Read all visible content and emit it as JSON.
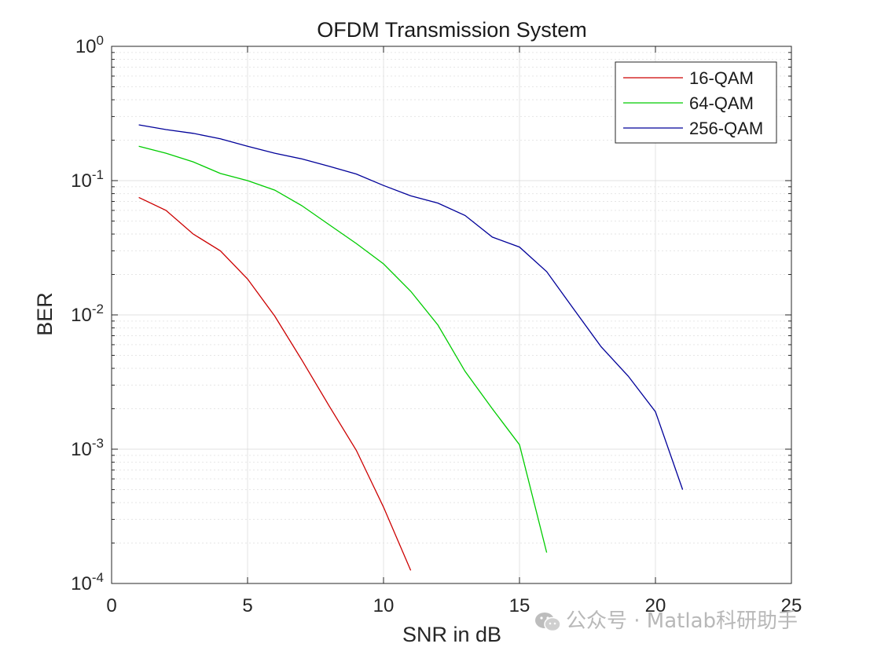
{
  "chart_data": {
    "type": "line",
    "title": "OFDM Transmission System",
    "xlabel": "SNR in dB",
    "ylabel": "BER",
    "xlim": [
      0,
      25
    ],
    "ylim": [
      0.0001,
      1
    ],
    "yscale": "log",
    "grid": true,
    "legend_position": "top-right",
    "x_ticks": [
      "0",
      "5",
      "10",
      "15",
      "20",
      "25"
    ],
    "y_tick_base": "10",
    "y_tick_exponents": [
      "0",
      "-1",
      "-2",
      "-3",
      "-4"
    ],
    "series": [
      {
        "name": "16-QAM",
        "color": "#cc0000",
        "x": [
          1,
          2,
          3,
          4,
          5,
          6,
          7,
          8,
          9,
          10,
          11
        ],
        "y": [
          0.075,
          0.06,
          0.04,
          0.03,
          0.0185,
          0.0098,
          0.0046,
          0.0021,
          0.00098,
          0.00037,
          0.000125
        ]
      },
      {
        "name": "64-QAM",
        "color": "#00cc00",
        "x": [
          1,
          2,
          3,
          4,
          5,
          6,
          7,
          8,
          9,
          10,
          11,
          12,
          13,
          14,
          15,
          16
        ],
        "y": [
          0.18,
          0.16,
          0.138,
          0.113,
          0.1,
          0.085,
          0.065,
          0.047,
          0.034,
          0.024,
          0.015,
          0.0084,
          0.0038,
          0.002,
          0.00108,
          0.00017
        ]
      },
      {
        "name": "256-QAM",
        "color": "#000099",
        "x": [
          1,
          2,
          3,
          4,
          5,
          6,
          7,
          8,
          9,
          10,
          11,
          12,
          13,
          14,
          15,
          16,
          17,
          18,
          19,
          20,
          21
        ],
        "y": [
          0.26,
          0.24,
          0.225,
          0.205,
          0.18,
          0.16,
          0.145,
          0.128,
          0.112,
          0.092,
          0.077,
          0.068,
          0.055,
          0.038,
          0.032,
          0.021,
          0.011,
          0.0058,
          0.0035,
          0.0019,
          0.0005
        ]
      }
    ]
  },
  "watermark": {
    "text": "公众号 · Matlab科研助手",
    "icon": "wechat-icon"
  }
}
